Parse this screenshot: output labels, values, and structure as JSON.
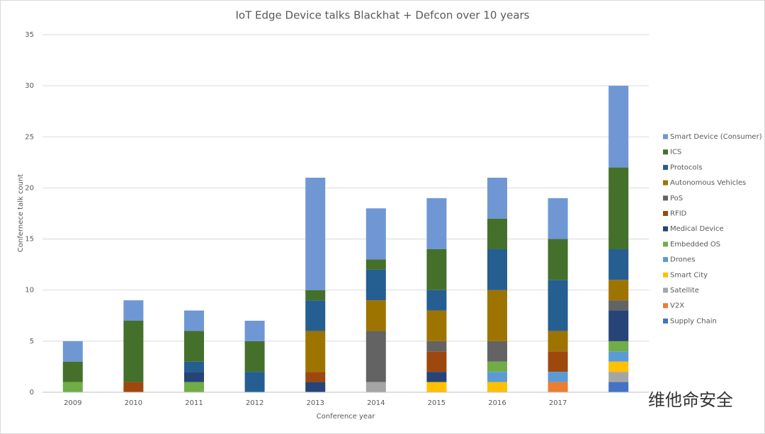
{
  "chart_data": {
    "type": "stacked_bar",
    "title": "IoT Edge Device talks Blackhat + Defcon over 10 years",
    "x_label": "Conference year",
    "y_label": "Confernece talk count",
    "categories": [
      "2009",
      "2010",
      "2011",
      "2012",
      "2013",
      "2014",
      "2015",
      "2016",
      "2017",
      null
    ],
    "ylim": [
      0,
      35
    ],
    "yticks": [
      0,
      5,
      10,
      15,
      20,
      25,
      30,
      35
    ],
    "grid": true,
    "legend": "right",
    "series": [
      {
        "name": "Smart Device (Consumer)",
        "color": "#6f97d4",
        "values": [
          2,
          2,
          2,
          2,
          11,
          5,
          5,
          4,
          4,
          8
        ]
      },
      {
        "name": "ICS",
        "color": "#44702c",
        "values": [
          2,
          6,
          3,
          3,
          1,
          1,
          4,
          3,
          4,
          8
        ]
      },
      {
        "name": "Protocols",
        "color": "#255e91",
        "values": [
          0,
          0,
          1,
          2,
          3,
          3,
          2,
          4,
          5,
          3
        ]
      },
      {
        "name": "Autonomous Vehicles",
        "color": "#9e7400",
        "values": [
          0,
          0,
          0,
          0,
          4,
          3,
          3,
          5,
          2,
          2
        ]
      },
      {
        "name": "PoS",
        "color": "#636363",
        "values": [
          0,
          0,
          0,
          0,
          0,
          5,
          1,
          2,
          0,
          1
        ]
      },
      {
        "name": "RFID",
        "color": "#9e480e",
        "values": [
          0,
          1,
          0,
          0,
          1,
          0,
          2,
          0,
          2,
          0
        ]
      },
      {
        "name": "Medical Device",
        "color": "#264478",
        "values": [
          0,
          0,
          1,
          0,
          1,
          0,
          1,
          0,
          0,
          3
        ]
      },
      {
        "name": "Embedded OS",
        "color": "#70ad47",
        "values": [
          1,
          0,
          1,
          0,
          0,
          0,
          0,
          1,
          0,
          1
        ]
      },
      {
        "name": "Drones",
        "color": "#5b9bd5",
        "values": [
          0,
          0,
          0,
          0,
          0,
          0,
          0,
          1,
          1,
          1
        ]
      },
      {
        "name": "Smart City",
        "color": "#ffc000",
        "values": [
          0,
          0,
          0,
          0,
          0,
          0,
          1,
          1,
          0,
          1
        ]
      },
      {
        "name": "Satellite",
        "color": "#a5a5a5",
        "values": [
          0,
          0,
          0,
          0,
          0,
          1,
          0,
          0,
          0,
          1
        ]
      },
      {
        "name": "V2X",
        "color": "#ed7d31",
        "values": [
          0,
          0,
          0,
          0,
          0,
          0,
          0,
          0,
          1,
          0
        ]
      },
      {
        "name": "Supply Chain",
        "color": "#4472c4",
        "values": [
          0,
          0,
          0,
          0,
          0,
          0,
          0,
          0,
          0,
          1
        ]
      }
    ]
  },
  "watermark": "维他命安全"
}
